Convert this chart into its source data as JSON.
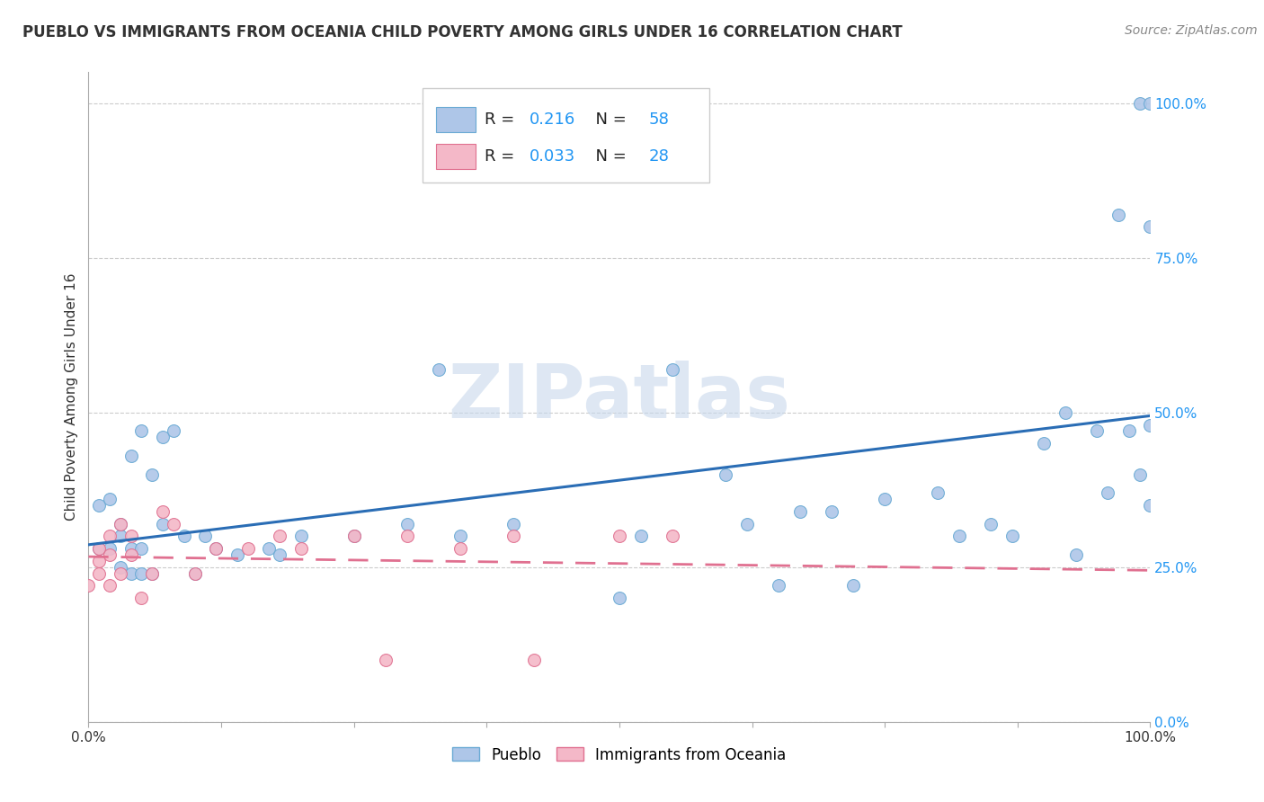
{
  "title": "PUEBLO VS IMMIGRANTS FROM OCEANIA CHILD POVERTY AMONG GIRLS UNDER 16 CORRELATION CHART",
  "source": "Source: ZipAtlas.com",
  "ylabel": "Child Poverty Among Girls Under 16",
  "xlim": [
    0,
    1
  ],
  "ylim": [
    0,
    1.05
  ],
  "yticks": [
    0.0,
    0.25,
    0.5,
    0.75,
    1.0
  ],
  "ytick_labels": [
    "0.0%",
    "25.0%",
    "50.0%",
    "75.0%",
    "100.0%"
  ],
  "xticks": [
    0.0,
    0.125,
    0.25,
    0.375,
    0.5,
    0.625,
    0.75,
    0.875,
    1.0
  ],
  "background_color": "#ffffff",
  "plot_bg_color": "#ffffff",
  "grid_color": "#cccccc",
  "pueblo_scatter_color": "#aec6e8",
  "pueblo_scatter_edge": "#6aaad4",
  "oceania_scatter_color": "#f4b8c8",
  "oceania_scatter_edge": "#e07090",
  "pueblo_line_color": "#2a6db5",
  "oceania_line_color": "#e07090",
  "pueblo_x": [
    0.01,
    0.01,
    0.02,
    0.02,
    0.03,
    0.03,
    0.03,
    0.04,
    0.04,
    0.04,
    0.05,
    0.05,
    0.05,
    0.06,
    0.06,
    0.07,
    0.07,
    0.08,
    0.09,
    0.1,
    0.11,
    0.12,
    0.14,
    0.17,
    0.18,
    0.2,
    0.25,
    0.3,
    0.33,
    0.35,
    0.4,
    0.5,
    0.52,
    0.55,
    0.6,
    0.62,
    0.65,
    0.67,
    0.7,
    0.72,
    0.75,
    0.8,
    0.82,
    0.85,
    0.87,
    0.9,
    0.92,
    0.93,
    0.95,
    0.96,
    0.97,
    0.98,
    0.99,
    0.99,
    1.0,
    1.0,
    1.0,
    1.0
  ],
  "pueblo_y": [
    0.35,
    0.28,
    0.36,
    0.28,
    0.25,
    0.3,
    0.32,
    0.24,
    0.28,
    0.43,
    0.24,
    0.28,
    0.47,
    0.24,
    0.4,
    0.32,
    0.46,
    0.47,
    0.3,
    0.24,
    0.3,
    0.28,
    0.27,
    0.28,
    0.27,
    0.3,
    0.3,
    0.32,
    0.57,
    0.3,
    0.32,
    0.2,
    0.3,
    0.57,
    0.4,
    0.32,
    0.22,
    0.34,
    0.34,
    0.22,
    0.36,
    0.37,
    0.3,
    0.32,
    0.3,
    0.45,
    0.5,
    0.27,
    0.47,
    0.37,
    0.82,
    0.47,
    1.0,
    0.4,
    1.0,
    0.48,
    0.8,
    0.35
  ],
  "oceania_x": [
    0.0,
    0.01,
    0.01,
    0.01,
    0.02,
    0.02,
    0.02,
    0.03,
    0.03,
    0.04,
    0.04,
    0.05,
    0.06,
    0.07,
    0.08,
    0.1,
    0.12,
    0.15,
    0.18,
    0.2,
    0.25,
    0.28,
    0.3,
    0.35,
    0.4,
    0.42,
    0.5,
    0.55
  ],
  "oceania_y": [
    0.22,
    0.24,
    0.26,
    0.28,
    0.22,
    0.27,
    0.3,
    0.24,
    0.32,
    0.27,
    0.3,
    0.2,
    0.24,
    0.34,
    0.32,
    0.24,
    0.28,
    0.28,
    0.3,
    0.28,
    0.3,
    0.1,
    0.3,
    0.28,
    0.3,
    0.1,
    0.3,
    0.3
  ],
  "title_fontsize": 12,
  "source_fontsize": 10,
  "axis_label_fontsize": 11,
  "tick_fontsize": 11,
  "legend_fontsize": 13,
  "watermark": "ZIPatlas",
  "watermark_fontsize": 60,
  "tick_color": "#2196F3"
}
